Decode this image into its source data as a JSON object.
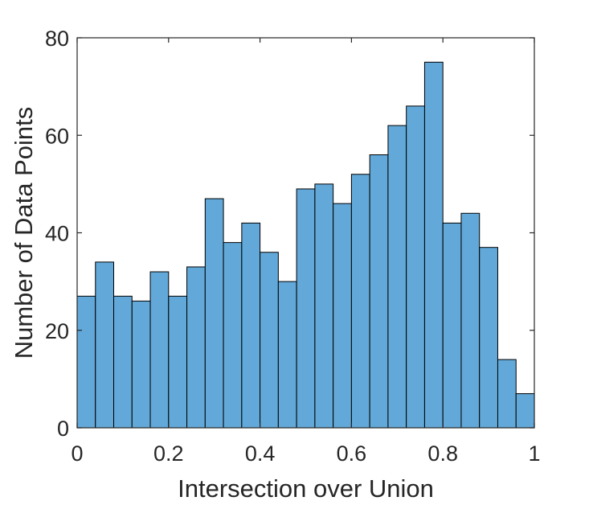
{
  "chart_data": {
    "type": "bar",
    "xlabel": "Intersection over Union",
    "ylabel": "Number of Data Points",
    "xlim": [
      0,
      1
    ],
    "ylim": [
      0,
      80
    ],
    "bin_edges": [
      0,
      0.04,
      0.08,
      0.12,
      0.16,
      0.2,
      0.24,
      0.28,
      0.32,
      0.36,
      0.4,
      0.44,
      0.48,
      0.52,
      0.56,
      0.6,
      0.64,
      0.68,
      0.72,
      0.76,
      0.8,
      0.84,
      0.88,
      0.92,
      0.96,
      1.0
    ],
    "values": [
      27,
      34,
      27,
      26,
      32,
      27,
      33,
      47,
      38,
      42,
      36,
      30,
      49,
      50,
      46,
      52,
      56,
      62,
      66,
      75,
      42,
      44,
      37,
      14,
      7
    ],
    "xticks": [
      "0",
      "0.2",
      "0.4",
      "0.6",
      "0.8",
      "1"
    ],
    "yticks": [
      "0",
      "20",
      "40",
      "60",
      "80"
    ],
    "bar_color": "#62A8D8",
    "grid": false,
    "box": true
  }
}
